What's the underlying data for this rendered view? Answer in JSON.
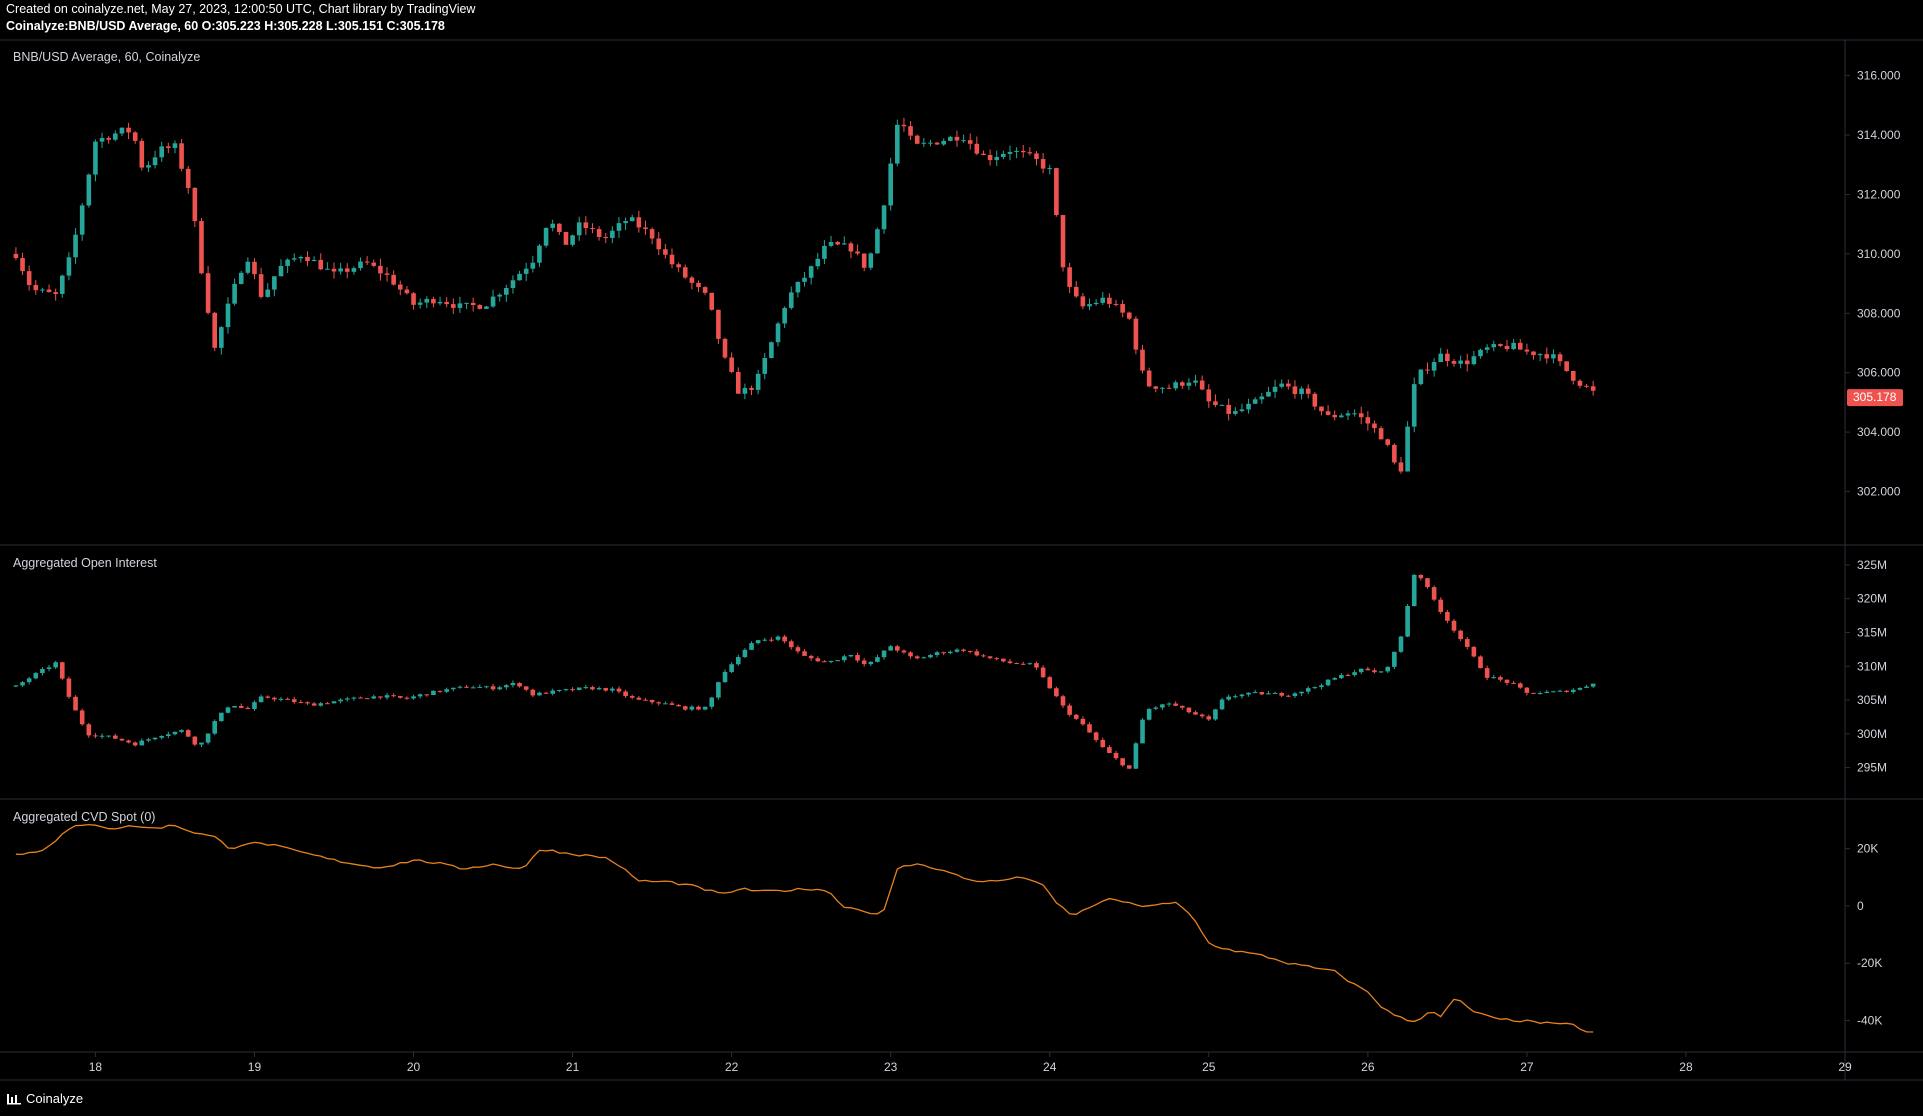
{
  "header": {
    "line1": "Created on coinalyze.net, May 27, 2023, 12:00:50 UTC, Chart library by TradingView",
    "line2": "Coinalyze:BNB/USD Average, 60 O:305.223 H:305.228 L:305.151 C:305.178"
  },
  "footer": {
    "brand": "Coinalyze",
    "logo_icon": "coinalyze-logo-icon"
  },
  "colors": {
    "up": "#26a69a",
    "down": "#ef5350",
    "cvd": "#e8821e",
    "grid": "#2a2e39",
    "text": "#d1d4dc",
    "last_price_bg": "#ef5350"
  },
  "chart_data": [
    {
      "type": "candlestick",
      "title": "BNB/USD Average, 60, Coinalyze",
      "yticks": [
        302,
        304,
        306,
        308,
        310,
        312,
        314,
        316
      ],
      "ytick_labels": [
        "302.000",
        "304.000",
        "306.000",
        "308.000",
        "310.000",
        "312.000",
        "314.000",
        "316.000"
      ],
      "ylim": [
        300.2,
        317.2
      ],
      "last_value": 305.178,
      "last_label": "305.178",
      "close_path": [
        [
          17.5,
          310
        ],
        [
          17.6,
          308.8
        ],
        [
          17.75,
          308.6
        ],
        [
          17.85,
          310
        ],
        [
          17.95,
          312.5
        ],
        [
          18.0,
          313.8
        ],
        [
          18.2,
          314.2
        ],
        [
          18.25,
          313.8
        ],
        [
          18.3,
          312.8
        ],
        [
          18.4,
          313.5
        ],
        [
          18.5,
          313.6
        ],
        [
          18.6,
          312.0
        ],
        [
          18.65,
          310.0
        ],
        [
          18.75,
          306.8
        ],
        [
          18.85,
          308.5
        ],
        [
          18.95,
          310.0
        ],
        [
          19.05,
          308.5
        ],
        [
          19.15,
          309.5
        ],
        [
          19.3,
          310.0
        ],
        [
          19.5,
          309.3
        ],
        [
          19.7,
          309.7
        ],
        [
          19.85,
          309.2
        ],
        [
          20.0,
          308.3
        ],
        [
          20.15,
          308.5
        ],
        [
          20.3,
          308.2
        ],
        [
          20.45,
          308.3
        ],
        [
          20.6,
          309.0
        ],
        [
          20.75,
          309.8
        ],
        [
          20.85,
          311.2
        ],
        [
          20.95,
          310.3
        ],
        [
          21.05,
          311.0
        ],
        [
          21.2,
          310.5
        ],
        [
          21.35,
          311.2
        ],
        [
          21.5,
          310.6
        ],
        [
          21.6,
          309.8
        ],
        [
          21.75,
          309.0
        ],
        [
          21.85,
          308.5
        ],
        [
          21.95,
          306.5
        ],
        [
          22.05,
          305.3
        ],
        [
          22.15,
          305.6
        ],
        [
          22.25,
          307.0
        ],
        [
          22.35,
          308.5
        ],
        [
          22.5,
          309.5
        ],
        [
          22.6,
          310.3
        ],
        [
          22.75,
          310.2
        ],
        [
          22.85,
          309.5
        ],
        [
          22.95,
          311.5
        ],
        [
          23.05,
          314.6
        ],
        [
          23.15,
          313.6
        ],
        [
          23.3,
          313.8
        ],
        [
          23.45,
          314.0
        ],
        [
          23.6,
          313.2
        ],
        [
          23.75,
          313.5
        ],
        [
          23.9,
          313.2
        ],
        [
          24.0,
          312.8
        ],
        [
          24.1,
          309.0
        ],
        [
          24.2,
          308.2
        ],
        [
          24.35,
          308.5
        ],
        [
          24.5,
          307.8
        ],
        [
          24.6,
          305.6
        ],
        [
          24.75,
          305.5
        ],
        [
          24.9,
          305.8
        ],
        [
          25.0,
          305.0
        ],
        [
          25.15,
          304.6
        ],
        [
          25.3,
          305.0
        ],
        [
          25.45,
          305.6
        ],
        [
          25.6,
          305.3
        ],
        [
          25.75,
          304.5
        ],
        [
          25.9,
          304.7
        ],
        [
          26.0,
          304.3
        ],
        [
          26.1,
          303.8
        ],
        [
          26.2,
          302.5
        ],
        [
          26.3,
          305.8
        ],
        [
          26.45,
          306.6
        ],
        [
          26.6,
          306.3
        ],
        [
          26.75,
          306.8
        ],
        [
          26.9,
          306.9
        ],
        [
          27.0,
          306.7
        ],
        [
          27.15,
          306.6
        ],
        [
          27.3,
          305.8
        ],
        [
          27.45,
          305.2
        ]
      ]
    },
    {
      "type": "candlestick",
      "title": "Aggregated Open Interest",
      "yticks": [
        295,
        300,
        305,
        310,
        315,
        320,
        325
      ],
      "ytick_labels": [
        "295M",
        "300M",
        "305M",
        "310M",
        "315M",
        "320M",
        "325M"
      ],
      "ylim": [
        290.5,
        327.8
      ],
      "close_path": [
        [
          17.5,
          307.0
        ],
        [
          17.6,
          308.5
        ],
        [
          17.75,
          310.5
        ],
        [
          17.85,
          304.5
        ],
        [
          17.95,
          300.0
        ],
        [
          18.1,
          299.5
        ],
        [
          18.25,
          298.5
        ],
        [
          18.4,
          299.8
        ],
        [
          18.55,
          300.5
        ],
        [
          18.65,
          298.0
        ],
        [
          18.75,
          301.8
        ],
        [
          18.85,
          304.5
        ],
        [
          18.95,
          303.5
        ],
        [
          19.05,
          305.5
        ],
        [
          19.2,
          305.0
        ],
        [
          19.35,
          304.3
        ],
        [
          19.5,
          304.8
        ],
        [
          19.65,
          305.3
        ],
        [
          19.8,
          305.6
        ],
        [
          19.95,
          305.2
        ],
        [
          20.05,
          305.8
        ],
        [
          20.2,
          306.5
        ],
        [
          20.35,
          307.0
        ],
        [
          20.5,
          306.8
        ],
        [
          20.65,
          307.5
        ],
        [
          20.75,
          305.8
        ],
        [
          20.9,
          306.3
        ],
        [
          21.1,
          306.8
        ],
        [
          21.25,
          306.5
        ],
        [
          21.4,
          305.0
        ],
        [
          21.55,
          304.6
        ],
        [
          21.7,
          303.8
        ],
        [
          21.85,
          303.8
        ],
        [
          21.92,
          308.0
        ],
        [
          22.0,
          310.5
        ],
        [
          22.15,
          313.8
        ],
        [
          22.3,
          314.3
        ],
        [
          22.45,
          311.5
        ],
        [
          22.6,
          310.5
        ],
        [
          22.75,
          311.8
        ],
        [
          22.85,
          310.0
        ],
        [
          23.0,
          313.0
        ],
        [
          23.15,
          311.0
        ],
        [
          23.3,
          312.0
        ],
        [
          23.45,
          312.5
        ],
        [
          23.6,
          311.3
        ],
        [
          23.75,
          310.5
        ],
        [
          23.9,
          310.2
        ],
        [
          24.1,
          303.5
        ],
        [
          24.2,
          301.5
        ],
        [
          24.35,
          297.5
        ],
        [
          24.5,
          294.8
        ],
        [
          24.6,
          303.5
        ],
        [
          24.75,
          304.5
        ],
        [
          24.9,
          303.0
        ],
        [
          25.0,
          302.0
        ],
        [
          25.1,
          305.5
        ],
        [
          25.3,
          306.0
        ],
        [
          25.5,
          305.8
        ],
        [
          25.65,
          306.8
        ],
        [
          25.8,
          308.3
        ],
        [
          25.95,
          309.5
        ],
        [
          26.1,
          309.0
        ],
        [
          26.2,
          313.5
        ],
        [
          26.3,
          324.5
        ],
        [
          26.45,
          318.5
        ],
        [
          26.6,
          313.5
        ],
        [
          26.75,
          308.5
        ],
        [
          26.9,
          307.5
        ],
        [
          27.0,
          306.0
        ],
        [
          27.2,
          306.2
        ],
        [
          27.35,
          306.8
        ],
        [
          27.45,
          308.0
        ]
      ]
    },
    {
      "type": "line",
      "title": "Aggregated CVD Spot (0)",
      "yticks": [
        -40000,
        -20000,
        0,
        20000
      ],
      "ytick_labels": [
        "-40K",
        "-20K",
        "0",
        "20K"
      ],
      "ylim": [
        -51000,
        37000
      ],
      "series": [
        {
          "color": "#e8821e",
          "points": [
            [
              17.5,
              18000
            ],
            [
              17.65,
              19000
            ],
            [
              17.75,
              23000
            ],
            [
              17.85,
              27500
            ],
            [
              18.0,
              28500
            ],
            [
              18.1,
              27000
            ],
            [
              18.25,
              28000
            ],
            [
              18.35,
              27000
            ],
            [
              18.5,
              28200
            ],
            [
              18.6,
              26000
            ],
            [
              18.75,
              24000
            ],
            [
              18.85,
              20000
            ],
            [
              18.95,
              22000
            ],
            [
              19.1,
              21500
            ],
            [
              19.2,
              20000
            ],
            [
              19.35,
              18000
            ],
            [
              19.5,
              16000
            ],
            [
              19.65,
              14500
            ],
            [
              19.75,
              13500
            ],
            [
              19.85,
              14000
            ],
            [
              20.0,
              16000
            ],
            [
              20.15,
              15000
            ],
            [
              20.3,
              13000
            ],
            [
              20.5,
              14500
            ],
            [
              20.65,
              13200
            ],
            [
              20.7,
              13500
            ],
            [
              20.8,
              20000
            ],
            [
              20.95,
              18500
            ],
            [
              21.1,
              17500
            ],
            [
              21.2,
              17000
            ],
            [
              21.3,
              14000
            ],
            [
              21.4,
              9000
            ],
            [
              21.5,
              8500
            ],
            [
              21.6,
              8500
            ],
            [
              21.75,
              7000
            ],
            [
              21.85,
              5500
            ],
            [
              21.95,
              4000
            ],
            [
              22.05,
              6000
            ],
            [
              22.2,
              5000
            ],
            [
              22.35,
              5500
            ],
            [
              22.5,
              6000
            ],
            [
              22.6,
              5500
            ],
            [
              22.7,
              0
            ],
            [
              22.85,
              -2000
            ],
            [
              22.95,
              -3000
            ],
            [
              23.05,
              14000
            ],
            [
              23.2,
              14500
            ],
            [
              23.35,
              12000
            ],
            [
              23.5,
              9000
            ],
            [
              23.65,
              8500
            ],
            [
              23.75,
              9500
            ],
            [
              23.85,
              10000
            ],
            [
              23.95,
              7500
            ],
            [
              24.05,
              500
            ],
            [
              24.15,
              -3500
            ],
            [
              24.3,
              1000
            ],
            [
              24.4,
              2500
            ],
            [
              24.55,
              0
            ],
            [
              24.7,
              500
            ],
            [
              24.8,
              1000
            ],
            [
              24.9,
              -4000
            ],
            [
              25.0,
              -13000
            ],
            [
              25.1,
              -15000
            ],
            [
              25.2,
              -16000
            ],
            [
              25.35,
              -17500
            ],
            [
              25.5,
              -20000
            ],
            [
              25.65,
              -21500
            ],
            [
              25.8,
              -23000
            ],
            [
              25.9,
              -27000
            ],
            [
              26.0,
              -30000
            ],
            [
              26.1,
              -36000
            ],
            [
              26.2,
              -39000
            ],
            [
              26.3,
              -40500
            ],
            [
              26.4,
              -36000
            ],
            [
              26.45,
              -39500
            ],
            [
              26.55,
              -32000
            ],
            [
              26.65,
              -36500
            ],
            [
              26.8,
              -39500
            ],
            [
              26.95,
              -40000
            ],
            [
              27.1,
              -40800
            ],
            [
              27.2,
              -41500
            ],
            [
              27.3,
              -41000
            ],
            [
              27.35,
              -44000
            ],
            [
              27.45,
              -44500
            ]
          ]
        }
      ]
    }
  ],
  "x_axis": {
    "ticks": [
      18,
      19,
      20,
      21,
      22,
      23,
      24,
      25,
      26,
      27,
      28,
      29
    ],
    "labels": [
      "18",
      "19",
      "20",
      "21",
      "22",
      "23",
      "24",
      "25",
      "26",
      "27",
      "28",
      "29"
    ]
  }
}
